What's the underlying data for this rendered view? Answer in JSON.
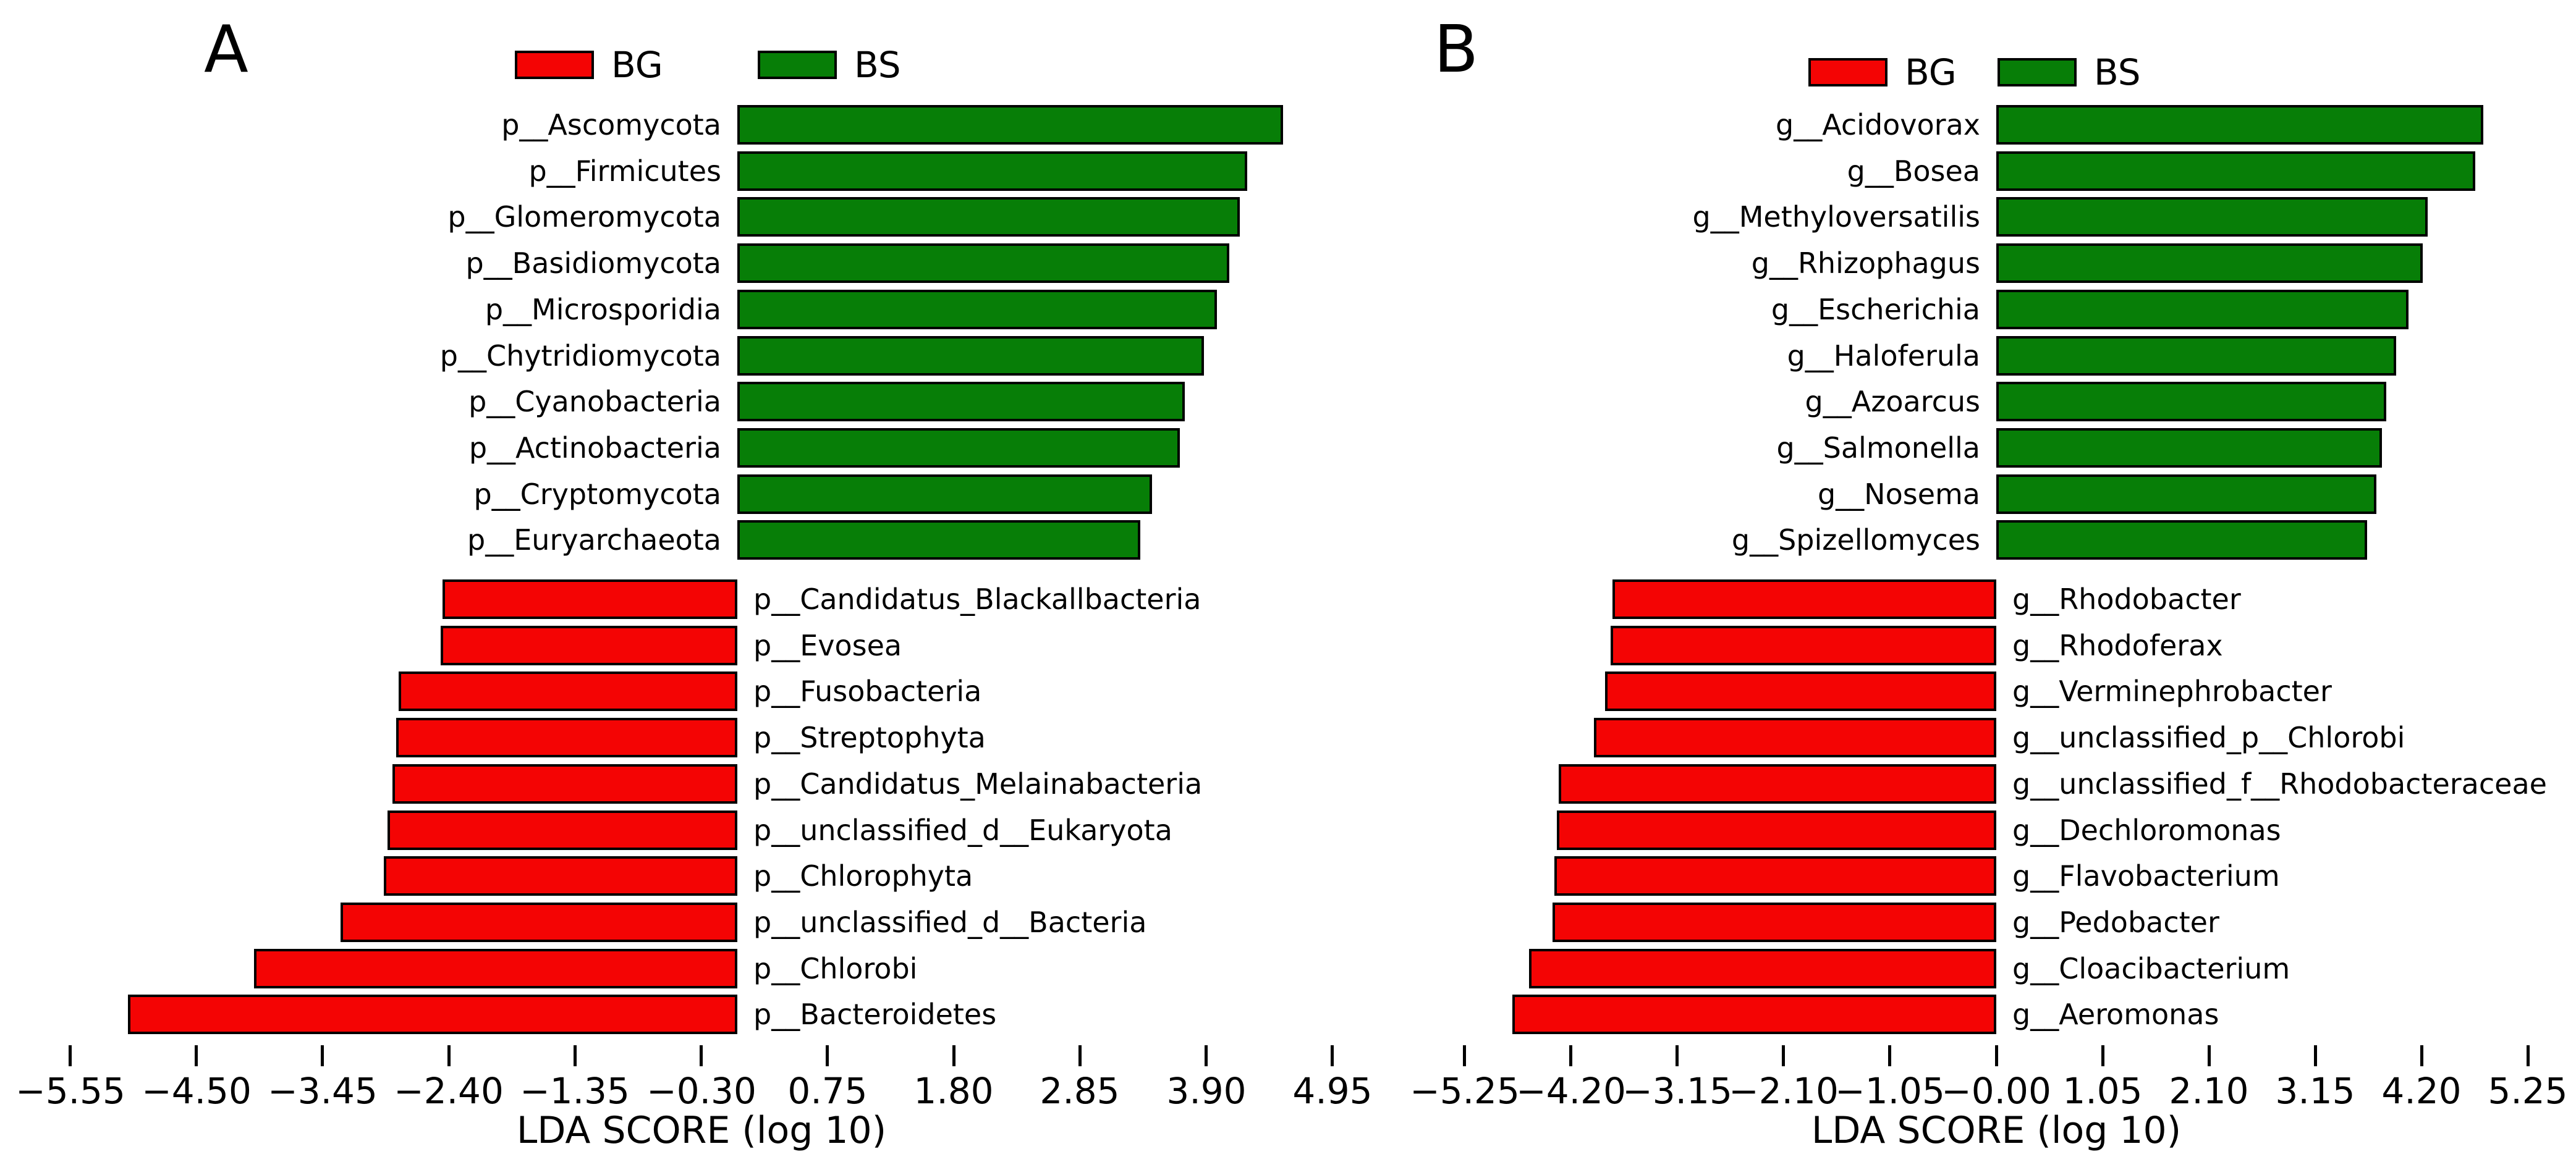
{
  "figure_type": "LEfSe LDA score horizontal bar charts, two panels",
  "colors": {
    "bg_red": "#f40404",
    "bs_green": "#077e07",
    "bar_border": "#000000",
    "text": "#000000",
    "background": "#ffffff"
  },
  "chart_data": [
    {
      "panel": "A",
      "type": "bar",
      "orientation": "horizontal",
      "xlabel": "LDA SCORE (log 10)",
      "xlim": [
        -5.95,
        5.35
      ],
      "grid": false,
      "legend_position": "top",
      "legend": [
        {
          "label": "BG",
          "color": "#f40404"
        },
        {
          "label": "BS",
          "color": "#077e07"
        }
      ],
      "xticks": [
        -5.55,
        -4.5,
        -3.45,
        -2.4,
        -1.35,
        -0.3,
        0.75,
        1.8,
        2.85,
        3.9,
        4.95
      ],
      "xtick_labels": [
        "−5.55",
        "−4.50",
        "−3.45",
        "−2.40",
        "−1.35",
        "−0.30",
        "0.75",
        "1.80",
        "2.85",
        "3.90",
        "4.95"
      ],
      "series": [
        {
          "name": "BS",
          "color": "#077e07",
          "items": [
            {
              "label": "p__Ascomycota",
              "value": 4.54
            },
            {
              "label": "p__Firmicutes",
              "value": 4.24
            },
            {
              "label": "p__Glomeromycota",
              "value": 4.18
            },
            {
              "label": "p__Basidiomycota",
              "value": 4.09
            },
            {
              "label": "p__Microsporidia",
              "value": 3.99
            },
            {
              "label": "p__Chytridiomycota",
              "value": 3.88
            },
            {
              "label": "p__Cyanobacteria",
              "value": 3.72
            },
            {
              "label": "p__Actinobacteria",
              "value": 3.68
            },
            {
              "label": "p__Cryptomycota",
              "value": 3.45
            },
            {
              "label": "p__Euryarchaeota",
              "value": 3.35
            }
          ]
        },
        {
          "name": "BG",
          "color": "#f40404",
          "items": [
            {
              "label": "p__Candidatus_Blackallbacteria",
              "value": -2.45
            },
            {
              "label": "p__Evosea",
              "value": -2.47
            },
            {
              "label": "p__Fusobacteria",
              "value": -2.82
            },
            {
              "label": "p__Streptophyta",
              "value": -2.84
            },
            {
              "label": "p__Candidatus_Melainabacteria",
              "value": -2.87
            },
            {
              "label": "p__unclassified_d__Eukaryota",
              "value": -2.91
            },
            {
              "label": "p__Chlorophyta",
              "value": -2.94
            },
            {
              "label": "p__unclassified_d__Bacteria",
              "value": -3.3
            },
            {
              "label": "p__Chlorobi",
              "value": -4.02
            },
            {
              "label": "p__Bacteroidetes",
              "value": -5.07
            }
          ]
        }
      ]
    },
    {
      "panel": "B",
      "type": "bar",
      "orientation": "horizontal",
      "xlabel": "LDA SCORE (log 10)",
      "xlim": [
        -5.7,
        5.7
      ],
      "grid": false,
      "legend_position": "top",
      "legend": [
        {
          "label": "BG",
          "color": "#f40404"
        },
        {
          "label": "BS",
          "color": "#077e07"
        }
      ],
      "xticks": [
        -5.25,
        -4.2,
        -3.15,
        -2.1,
        -1.05,
        0.0,
        1.05,
        2.1,
        3.15,
        4.2,
        5.25
      ],
      "xtick_labels": [
        "−5.25",
        "−4.20",
        "−3.15",
        "−2.10",
        "−1.05",
        "−0.00",
        "1.05",
        "2.10",
        "3.15",
        "4.20",
        "5.25"
      ],
      "series": [
        {
          "name": "BS",
          "color": "#077e07",
          "items": [
            {
              "label": "g__Acidovorax",
              "value": 4.81
            },
            {
              "label": "g__Bosea",
              "value": 4.73
            },
            {
              "label": "g__Methyloversatilis",
              "value": 4.26
            },
            {
              "label": "g__Rhizophagus",
              "value": 4.21
            },
            {
              "label": "g__Escherichia",
              "value": 4.07
            },
            {
              "label": "g__Haloferula",
              "value": 3.95
            },
            {
              "label": "g__Azoarcus",
              "value": 3.85
            },
            {
              "label": "g__Salmonella",
              "value": 3.81
            },
            {
              "label": "g__Nosema",
              "value": 3.75
            },
            {
              "label": "g__Spizellomyces",
              "value": 3.66
            }
          ]
        },
        {
          "name": "BG",
          "color": "#f40404",
          "items": [
            {
              "label": "g__Rhodobacter",
              "value": -3.79
            },
            {
              "label": "g__Rhodoferax",
              "value": -3.81
            },
            {
              "label": "g__Verminephrobacter",
              "value": -3.86
            },
            {
              "label": "g__unclassified_p__Chlorobi",
              "value": -3.97
            },
            {
              "label": "g__unclassified_f__Rhodobacteraceae",
              "value": -4.32
            },
            {
              "label": "g__Dechloromonas",
              "value": -4.34
            },
            {
              "label": "g__Flavobacterium",
              "value": -4.36
            },
            {
              "label": "g__Pedobacter",
              "value": -4.38
            },
            {
              "label": "g__Cloacibacterium",
              "value": -4.61
            },
            {
              "label": "g__Aeromonas",
              "value": -4.78
            }
          ]
        }
      ]
    }
  ]
}
